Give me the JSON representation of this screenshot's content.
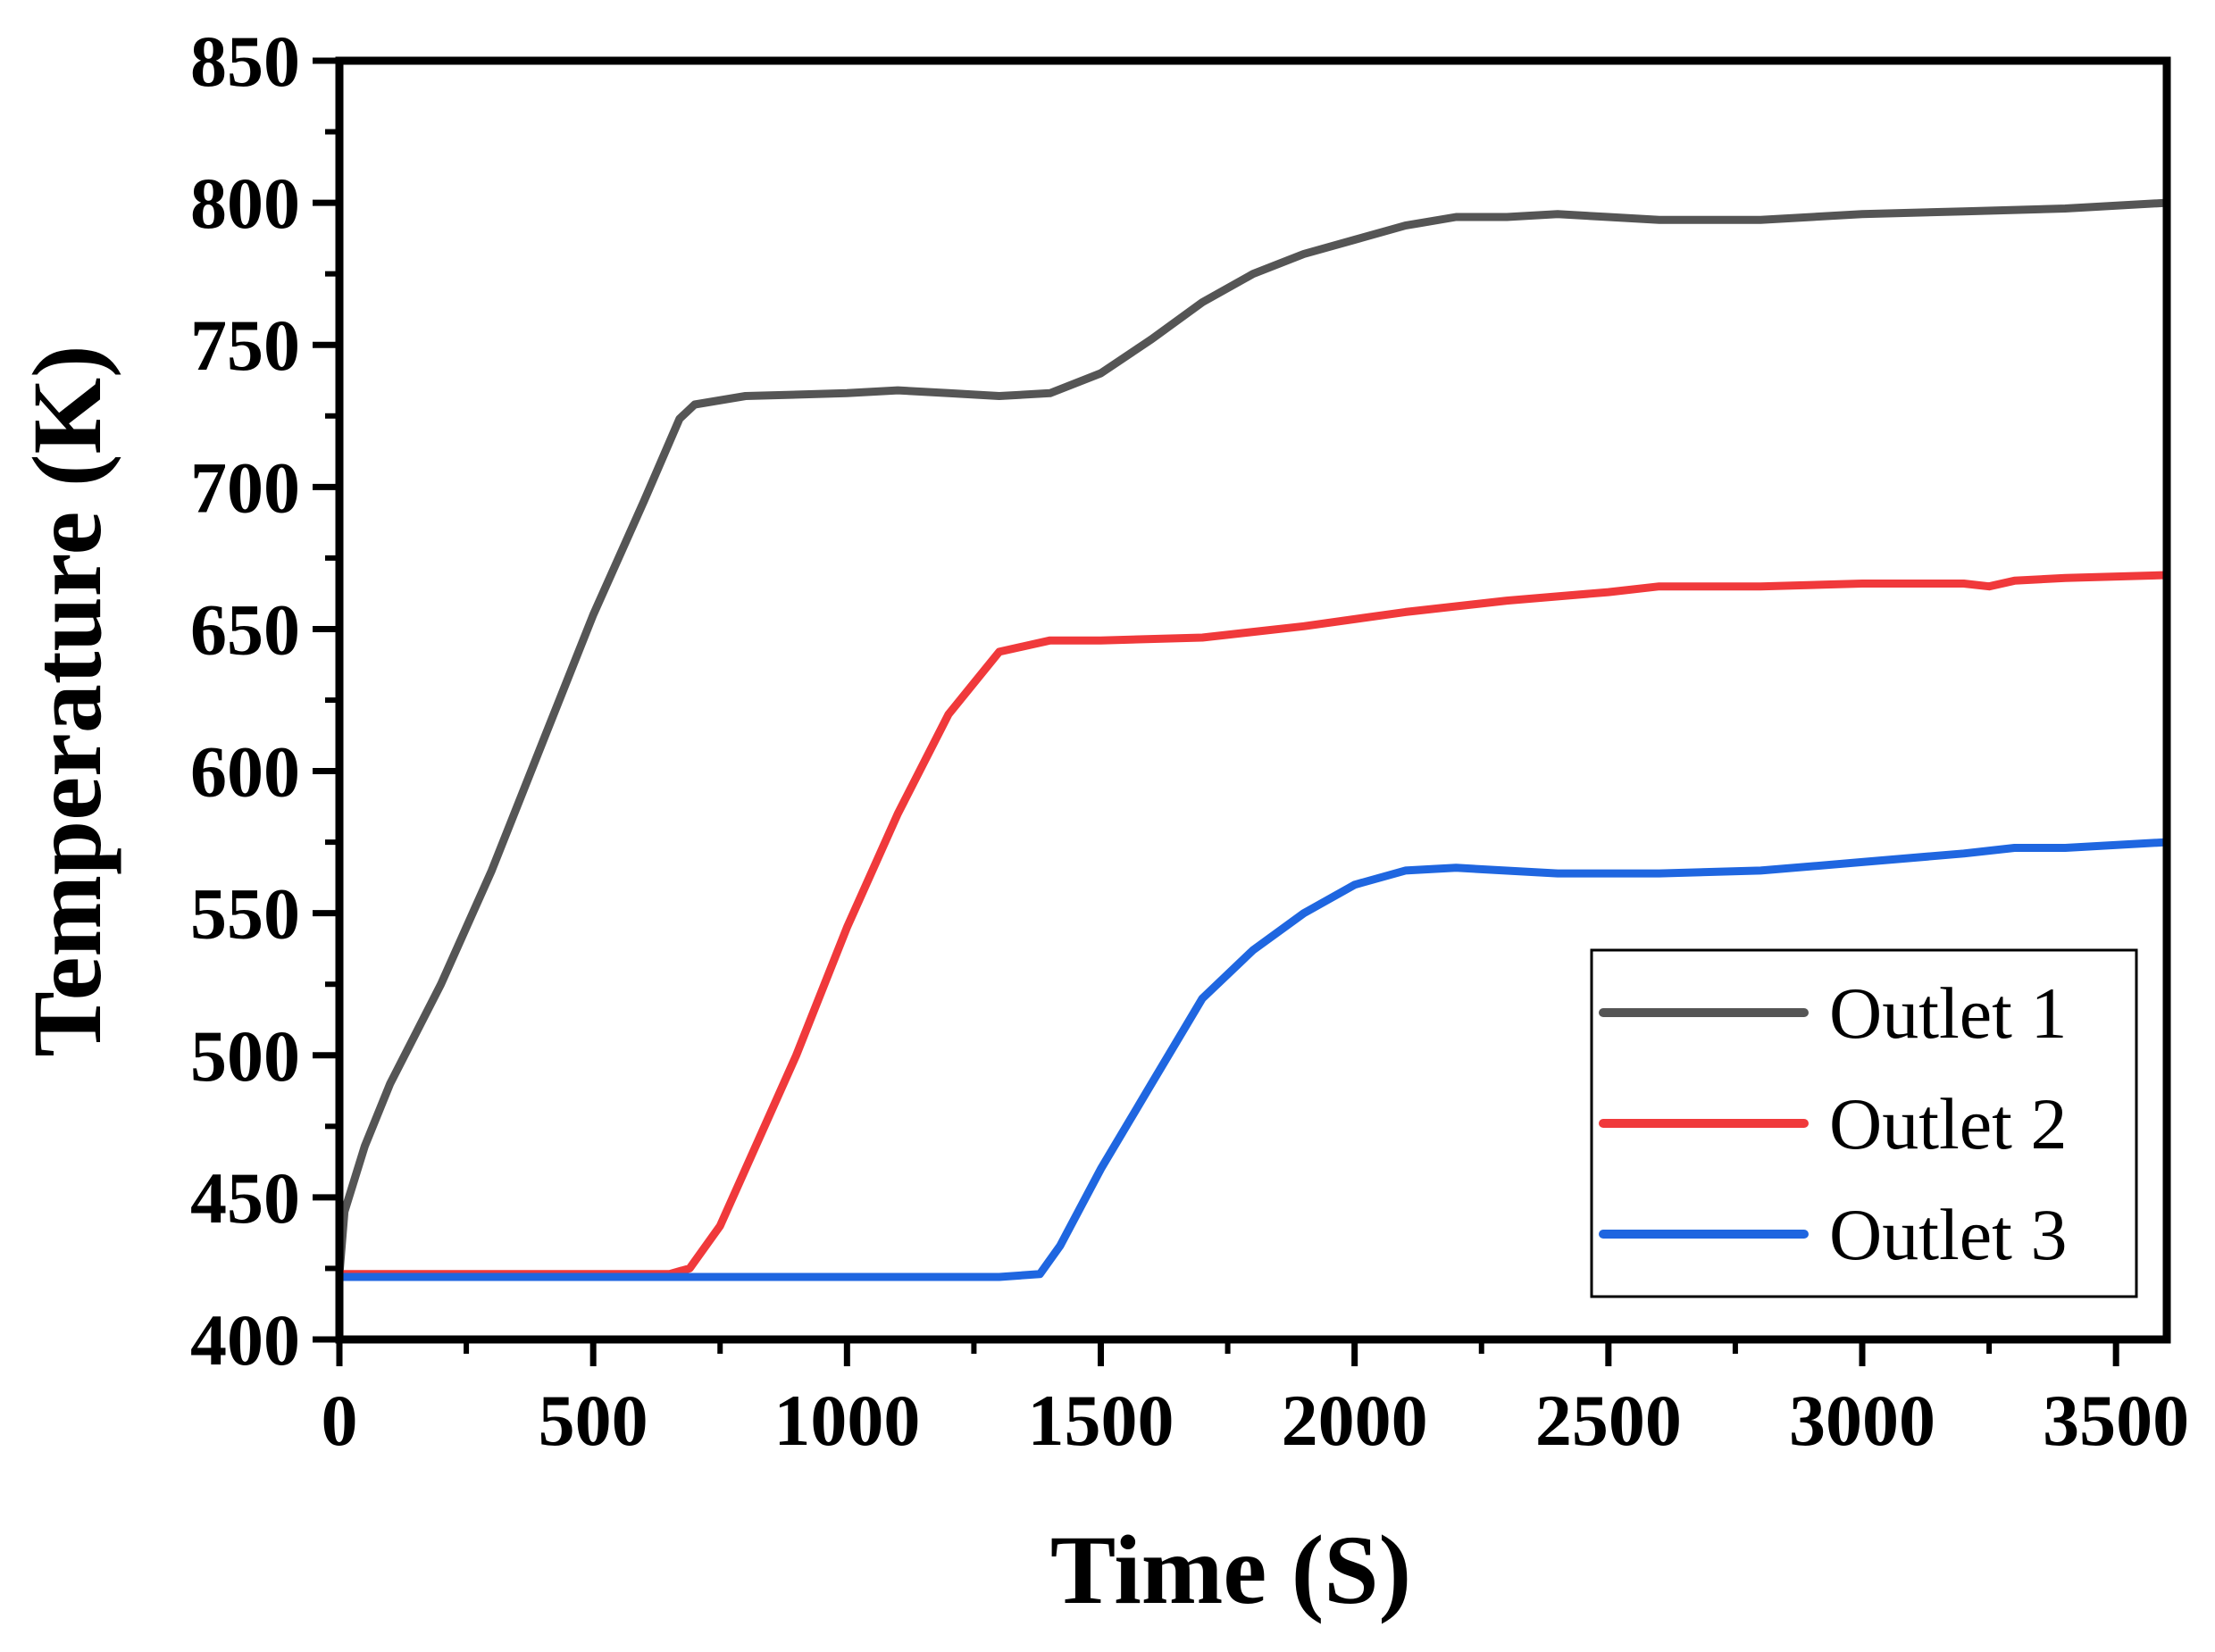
{
  "chart_data": {
    "type": "line",
    "title": "",
    "xlabel": "Time (S)",
    "ylabel": "Temperature (K)",
    "xlim": [
      0,
      3600
    ],
    "ylim": [
      400,
      850
    ],
    "xticks": [
      0,
      500,
      1000,
      1500,
      2000,
      2500,
      3000,
      3500
    ],
    "yticks": [
      400,
      450,
      500,
      550,
      600,
      650,
      700,
      750,
      800,
      850
    ],
    "xtick_labels": [
      "0",
      "500",
      "1000",
      "1500",
      "2000",
      "2500",
      "3000",
      "3500"
    ],
    "ytick_labels": [
      "400",
      "450",
      "500",
      "550",
      "600",
      "650",
      "700",
      "750",
      "800",
      "850"
    ],
    "grid": false,
    "legend_position": "bottom-right",
    "series": [
      {
        "name": "Outlet 1",
        "color": "#555555",
        "points": [
          [
            0,
            423
          ],
          [
            10,
            445
          ],
          [
            50,
            468
          ],
          [
            100,
            490
          ],
          [
            200,
            525
          ],
          [
            300,
            565
          ],
          [
            400,
            610
          ],
          [
            500,
            655
          ],
          [
            600,
            695
          ],
          [
            670,
            724
          ],
          [
            700,
            729
          ],
          [
            800,
            732
          ],
          [
            1000,
            733
          ],
          [
            1100,
            734
          ],
          [
            1200,
            733
          ],
          [
            1300,
            732
          ],
          [
            1400,
            733
          ],
          [
            1500,
            740
          ],
          [
            1600,
            752
          ],
          [
            1700,
            765
          ],
          [
            1800,
            775
          ],
          [
            1900,
            782
          ],
          [
            2000,
            787
          ],
          [
            2100,
            792
          ],
          [
            2200,
            795
          ],
          [
            2300,
            795
          ],
          [
            2400,
            796
          ],
          [
            2500,
            795
          ],
          [
            2600,
            794
          ],
          [
            2800,
            794
          ],
          [
            3000,
            796
          ],
          [
            3200,
            797
          ],
          [
            3400,
            798
          ],
          [
            3600,
            800
          ]
        ]
      },
      {
        "name": "Outlet 2",
        "color": "#f0393b",
        "points": [
          [
            0,
            423
          ],
          [
            500,
            423
          ],
          [
            650,
            423
          ],
          [
            690,
            425
          ],
          [
            750,
            440
          ],
          [
            800,
            460
          ],
          [
            900,
            500
          ],
          [
            1000,
            545
          ],
          [
            1100,
            585
          ],
          [
            1200,
            620
          ],
          [
            1300,
            642
          ],
          [
            1400,
            646
          ],
          [
            1500,
            646
          ],
          [
            1700,
            647
          ],
          [
            1900,
            651
          ],
          [
            2100,
            656
          ],
          [
            2300,
            660
          ],
          [
            2500,
            663
          ],
          [
            2600,
            665
          ],
          [
            2800,
            665
          ],
          [
            3000,
            666
          ],
          [
            3200,
            666
          ],
          [
            3250,
            665
          ],
          [
            3300,
            667
          ],
          [
            3400,
            668
          ],
          [
            3600,
            669
          ]
        ]
      },
      {
        "name": "Outlet 3",
        "color": "#1f66e0",
        "points": [
          [
            0,
            422
          ],
          [
            1000,
            422
          ],
          [
            1300,
            422
          ],
          [
            1380,
            423
          ],
          [
            1420,
            433
          ],
          [
            1500,
            460
          ],
          [
            1600,
            490
          ],
          [
            1700,
            520
          ],
          [
            1800,
            537
          ],
          [
            1900,
            550
          ],
          [
            2000,
            560
          ],
          [
            2100,
            565
          ],
          [
            2200,
            566
          ],
          [
            2400,
            564
          ],
          [
            2600,
            564
          ],
          [
            2800,
            565
          ],
          [
            3000,
            568
          ],
          [
            3200,
            571
          ],
          [
            3300,
            573
          ],
          [
            3400,
            573
          ],
          [
            3600,
            575
          ]
        ]
      }
    ]
  }
}
